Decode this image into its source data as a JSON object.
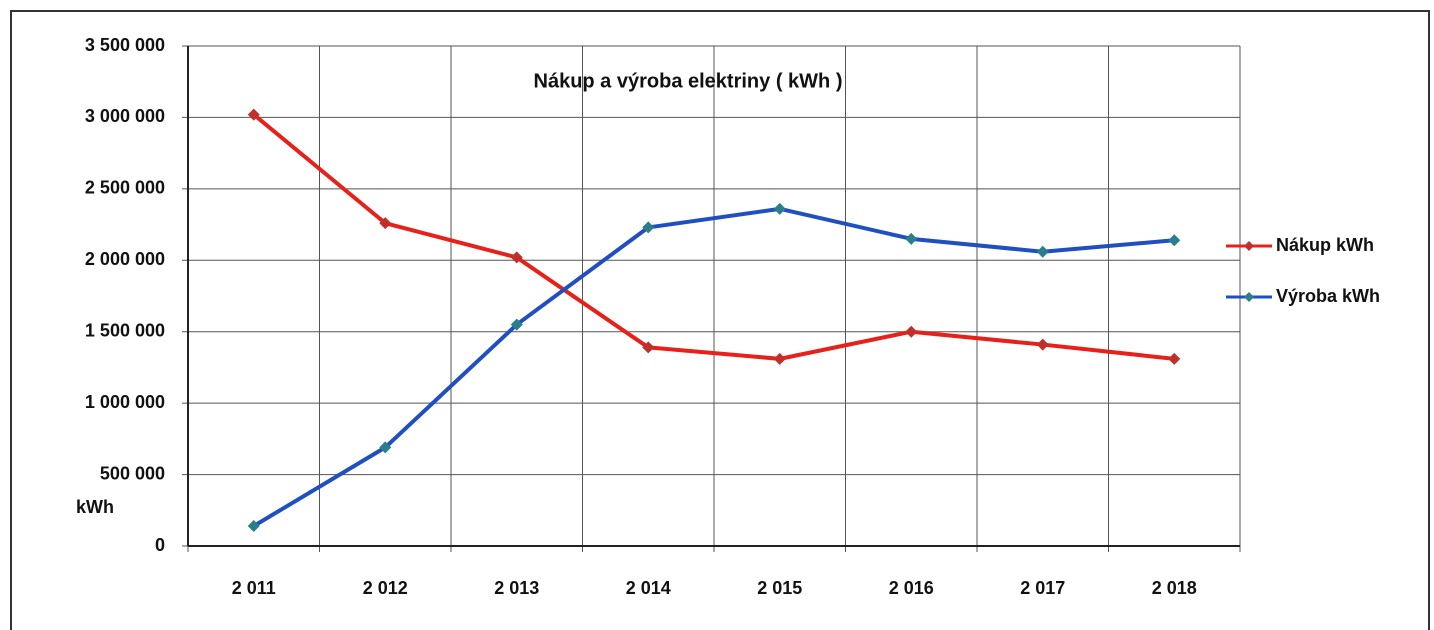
{
  "chart_data": {
    "type": "line",
    "title": "Nákup a výroba elektriny  ( kWh )",
    "y_label": "kWh",
    "categories": [
      "2 011",
      "2 012",
      "2 013",
      "2 014",
      "2 015",
      "2 016",
      "2 017",
      "2 018"
    ],
    "series": [
      {
        "name": "Nákup kWh",
        "color": "#e8201a",
        "values": [
          3020000,
          2260000,
          2020000,
          1390000,
          1310000,
          1500000,
          1410000,
          1310000
        ]
      },
      {
        "name": "Výroba kWh",
        "color": "#1f4fc0",
        "values": [
          140000,
          690000,
          1550000,
          2230000,
          2360000,
          2150000,
          2060000,
          2140000
        ]
      }
    ],
    "ylim": [
      0,
      3500000
    ],
    "yticks": [
      0,
      {
        "value": 500000,
        "label": "500 000"
      },
      {
        "value": 1000000,
        "label": "1 000 000"
      },
      {
        "value": 1500000,
        "label": "1 500 000"
      },
      {
        "value": 2000000,
        "label": "2 000 000"
      },
      {
        "value": 2500000,
        "label": "2 500 000"
      },
      {
        "value": 3000000,
        "label": "3 000 000"
      },
      {
        "value": 3500000,
        "label": "3 500 000"
      }
    ],
    "grid": true,
    "legend": "right"
  }
}
